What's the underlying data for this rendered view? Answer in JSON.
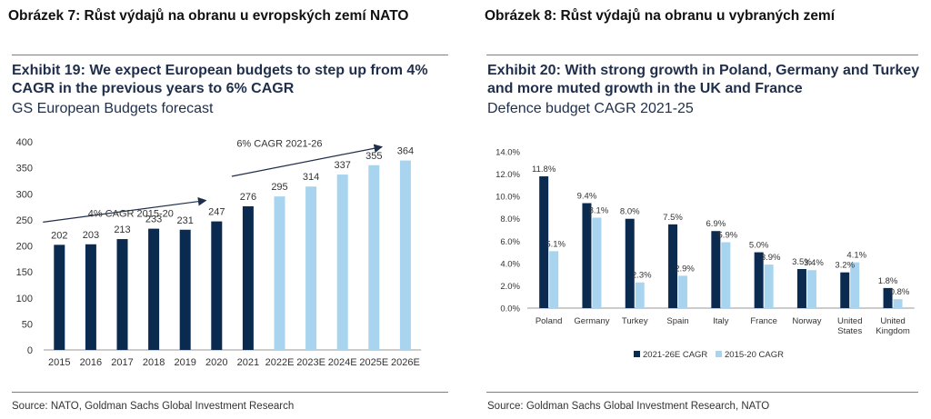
{
  "left": {
    "caption": "Obrázek 7: Růst výdajů na obranu u evropských zemí NATO",
    "title": "Exhibit 19: We expect European budgets to step up from 4% CAGR in the previous years to 6% CAGR",
    "subtitle": "GS European Budgets forecast",
    "source": "Source: NATO, Goldman Sachs Global Investment Research"
  },
  "right": {
    "caption": "Obrázek 8: Růst výdajů na obranu u vybraných zemí",
    "title": "Exhibit 20: With strong growth in Poland, Germany and Turkey and more muted growth in the UK and France",
    "subtitle": "Defence budget CAGR 2021-25",
    "source": "Source: Goldman Sachs Global Investment Research, NATO"
  },
  "colors": {
    "dark": "#0b2a50",
    "light": "#a8d4f0",
    "title": "#1f2f4b"
  },
  "chart_data": [
    {
      "type": "bar",
      "title": "GS European Budgets forecast",
      "categories": [
        "2015",
        "2016",
        "2017",
        "2018",
        "2019",
        "2020",
        "2021",
        "2022E",
        "2023E",
        "2024E",
        "2025E",
        "2026E"
      ],
      "values": [
        202,
        203,
        213,
        233,
        231,
        247,
        276,
        295,
        314,
        337,
        355,
        364
      ],
      "bar_colors": [
        "dark",
        "dark",
        "dark",
        "dark",
        "dark",
        "dark",
        "dark",
        "light",
        "light",
        "light",
        "light",
        "light"
      ],
      "yticks": [
        0,
        50,
        100,
        150,
        200,
        250,
        300,
        350,
        400
      ],
      "ylim": [
        0,
        400
      ],
      "grid": false,
      "annotations": [
        {
          "text": "4% CAGR 2015-20",
          "from": "2015",
          "to": "2020"
        },
        {
          "text": "6% CAGR 2021-26",
          "from": "2021",
          "to": "2026E"
        }
      ]
    },
    {
      "type": "bar",
      "title": "Defence budget CAGR 2021-25",
      "categories": [
        "Poland",
        "Germany",
        "Turkey",
        "Spain",
        "Italy",
        "France",
        "Norway",
        "United States",
        "United Kingdom"
      ],
      "series": [
        {
          "name": "2021-26E CAGR",
          "values": [
            11.8,
            9.4,
            8.0,
            7.5,
            6.9,
            5.0,
            3.5,
            3.2,
            1.8
          ],
          "labels": [
            "11.8%",
            "9.4%",
            "8.0%",
            "7.5%",
            "6.9%",
            "5.0%",
            "3.5%",
            "3.2%",
            "1.8%"
          ],
          "color": "dark"
        },
        {
          "name": "2015-20 CAGR",
          "values": [
            5.1,
            8.1,
            2.3,
            2.9,
            5.9,
            3.9,
            3.4,
            4.1,
            0.8
          ],
          "labels": [
            "5.1%",
            "8.1%",
            "2.3%",
            "2.9%",
            "5.9%",
            "3.9%",
            "3.4%",
            "4.1%",
            "0.8%"
          ],
          "color": "light"
        }
      ],
      "yticks": [
        "0.0%",
        "2.0%",
        "4.0%",
        "6.0%",
        "8.0%",
        "10.0%",
        "12.0%",
        "14.0%"
      ],
      "ylim": [
        0,
        14
      ],
      "grid": false,
      "legend": "bottom"
    }
  ]
}
